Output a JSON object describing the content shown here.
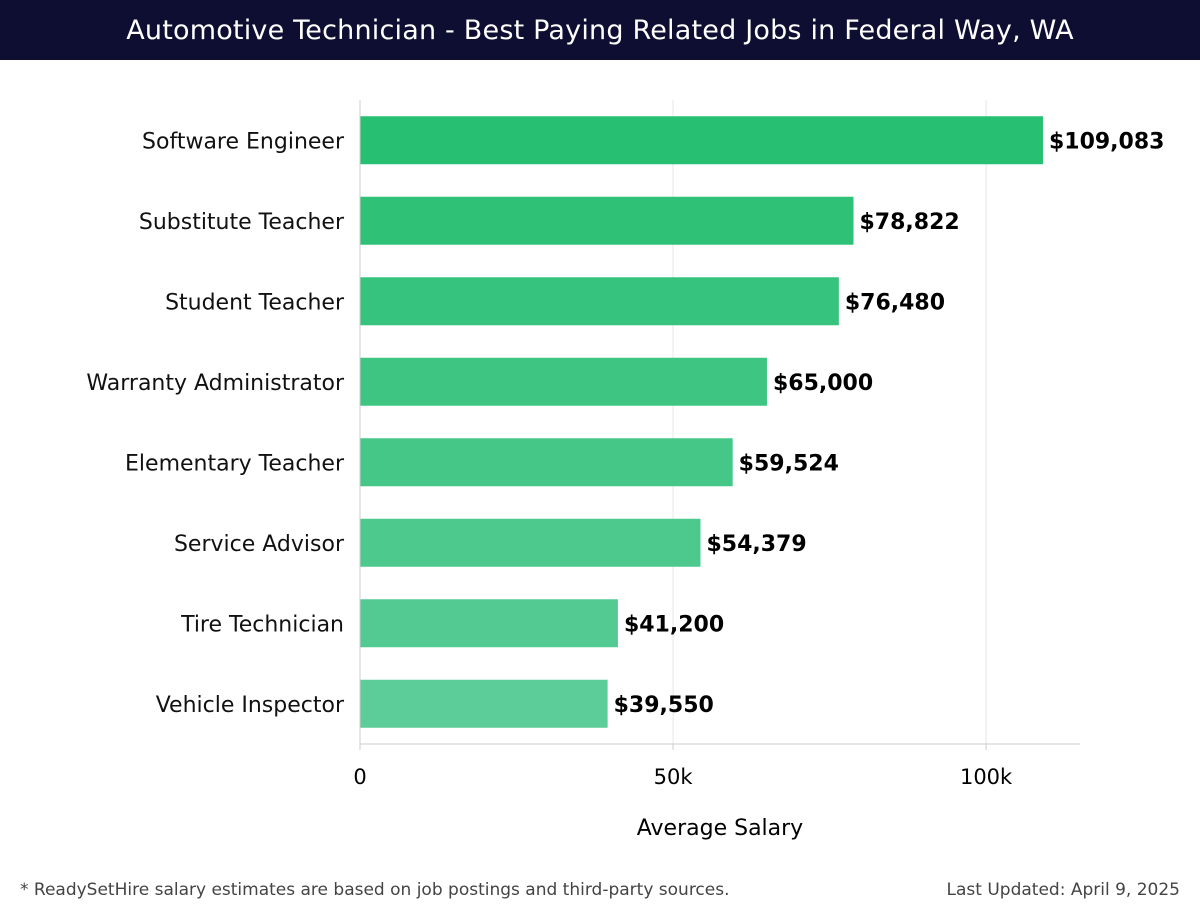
{
  "header": {
    "title": "Automotive Technician - Best Paying Related Jobs in Federal Way, WA"
  },
  "chart_data": {
    "type": "bar",
    "orientation": "horizontal",
    "categories": [
      "Software Engineer",
      "Substitute Teacher",
      "Student Teacher",
      "Warranty Administrator",
      "Elementary Teacher",
      "Service Advisor",
      "Tire Technician",
      "Vehicle Inspector"
    ],
    "values": [
      109083,
      78822,
      76480,
      65000,
      59524,
      54379,
      41200,
      39550
    ],
    "value_labels": [
      "$109,083",
      "$78,822",
      "$76,480",
      "$65,000",
      "$59,524",
      "$54,379",
      "$41,200",
      "$39,550"
    ],
    "xlabel": "Average Salary",
    "ylabel": "",
    "xlim": [
      0,
      115000
    ],
    "xticks": [
      0,
      50000,
      100000
    ],
    "xtick_labels": [
      "0",
      "50k",
      "100k"
    ],
    "grid": true,
    "bar_color_top": "#27c072",
    "bar_color_bottom": "#5ccc98"
  },
  "footer": {
    "note": "* ReadySetHire salary estimates are based on job postings and third-party sources.",
    "updated": "Last Updated: April 9, 2025"
  }
}
